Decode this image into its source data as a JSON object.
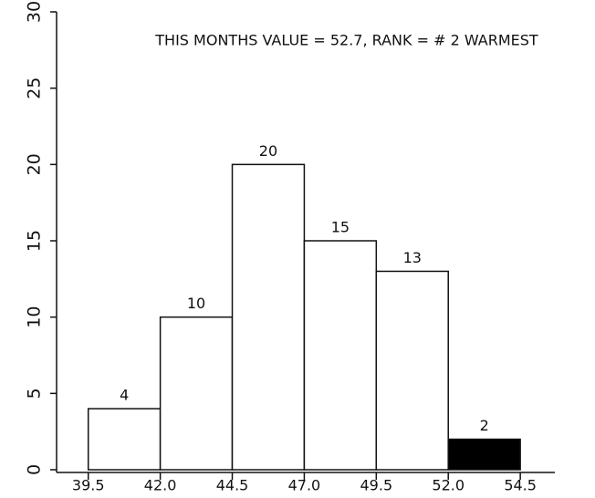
{
  "chart_data": {
    "type": "histogram",
    "title": "THIS MONTHS VALUE =  52.7, RANK = #  2 WARMEST",
    "bins": [
      39.5,
      42.0,
      44.5,
      47.0,
      49.5,
      52.0,
      54.5
    ],
    "values": [
      4,
      10,
      20,
      15,
      13,
      2
    ],
    "colors": [
      "#ffffff",
      "#ffffff",
      "#ffffff",
      "#ffffff",
      "#ffffff",
      "#000000"
    ],
    "xlim": [
      38.4,
      55.7
    ],
    "xticks": [
      39.5,
      {
        "value": 42,
        "label": "42.0"
      },
      44.5,
      {
        "value": 47,
        "label": "47.0"
      },
      49.5,
      {
        "value": 52,
        "label": "52.0"
      },
      54.5
    ],
    "ylim": [
      0,
      30
    ],
    "yticks": [
      0,
      5,
      10,
      15,
      20,
      25,
      30
    ]
  }
}
